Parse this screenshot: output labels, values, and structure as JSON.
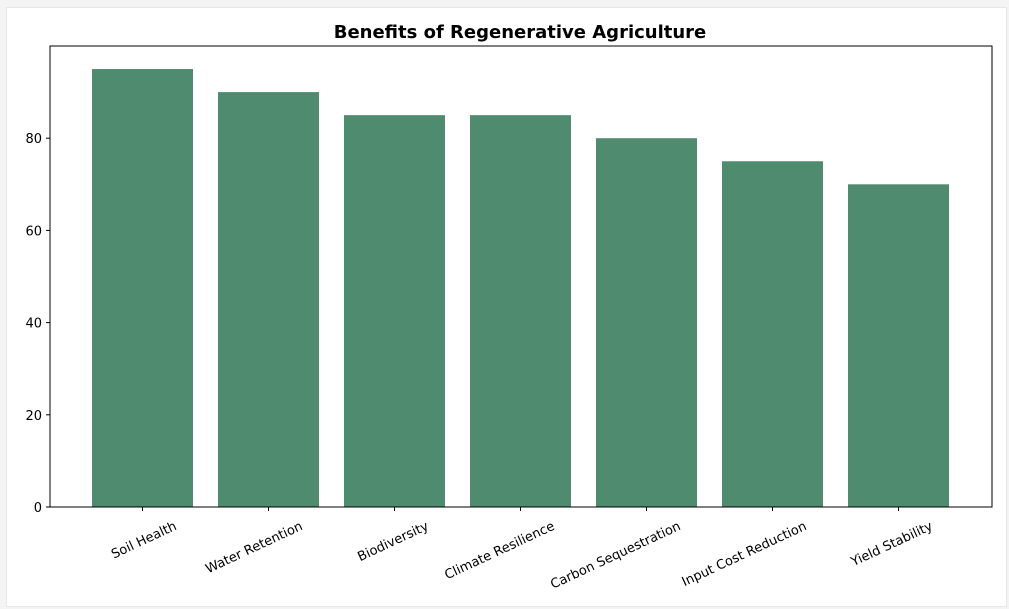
{
  "chart_data": {
    "type": "bar",
    "title": "Benefits of Regenerative Agriculture",
    "xlabel": "",
    "ylabel": "",
    "categories": [
      "Soil Health",
      "Water Retention",
      "Biodiversity",
      "Climate Resilience",
      "Carbon Sequestration",
      "Input Cost Reduction",
      "Yield Stability"
    ],
    "values": [
      95,
      90,
      85,
      85,
      80,
      75,
      70
    ],
    "ylim": [
      0,
      100
    ],
    "yticks": [
      0,
      20,
      40,
      60,
      80
    ],
    "grid": false,
    "legend": "none",
    "bar_color": "#4f8b6e",
    "tick_label_rotation": -25
  }
}
